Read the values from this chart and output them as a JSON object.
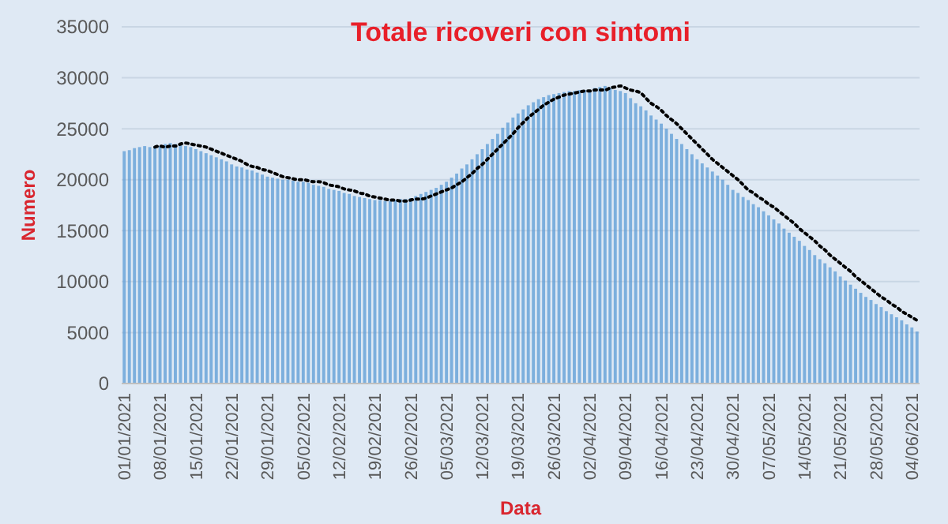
{
  "chart_data": {
    "type": "bar",
    "title": "Totale ricoveri con sintomi",
    "xlabel": "Data",
    "ylabel": "Numero",
    "categories": [
      "01/01/2021",
      null,
      null,
      null,
      null,
      null,
      null,
      "08/01/2021",
      null,
      null,
      null,
      null,
      null,
      null,
      "15/01/2021",
      null,
      null,
      null,
      null,
      null,
      null,
      "22/01/2021",
      null,
      null,
      null,
      null,
      null,
      null,
      "29/01/2021",
      null,
      null,
      null,
      null,
      null,
      null,
      "05/02/2021",
      null,
      null,
      null,
      null,
      null,
      null,
      "12/02/2021",
      null,
      null,
      null,
      null,
      null,
      null,
      "19/02/2021",
      null,
      null,
      null,
      null,
      null,
      null,
      "26/02/2021",
      null,
      null,
      null,
      null,
      null,
      null,
      "05/03/2021",
      null,
      null,
      null,
      null,
      null,
      null,
      "12/03/2021",
      null,
      null,
      null,
      null,
      null,
      null,
      "19/03/2021",
      null,
      null,
      null,
      null,
      null,
      null,
      "26/03/2021",
      null,
      null,
      null,
      null,
      null,
      null,
      "02/04/2021",
      null,
      null,
      null,
      null,
      null,
      null,
      "09/04/2021",
      null,
      null,
      null,
      null,
      null,
      null,
      "16/04/2021",
      null,
      null,
      null,
      null,
      null,
      null,
      "23/04/2021",
      null,
      null,
      null,
      null,
      null,
      null,
      "30/04/2021",
      null,
      null,
      null,
      null,
      null,
      null,
      "07/05/2021",
      null,
      null,
      null,
      null,
      null,
      null,
      "14/05/2021",
      null,
      null,
      null,
      null,
      null,
      null,
      "21/05/2021",
      null,
      null,
      null,
      null,
      null,
      null,
      "28/05/2021",
      null,
      null,
      null,
      null,
      null,
      null,
      "04/06/2021",
      null
    ],
    "series": [
      {
        "color": "#5b9bd5",
        "values": [
          22800,
          22900,
          23100,
          23200,
          23300,
          23200,
          23300,
          23300,
          23500,
          23600,
          23500,
          23400,
          23300,
          23200,
          23000,
          22800,
          22600,
          22400,
          22200,
          22000,
          21800,
          21500,
          21300,
          21200,
          21000,
          20900,
          20700,
          20500,
          20300,
          20200,
          20100,
          20000,
          20000,
          19900,
          19800,
          19800,
          19700,
          19500,
          19400,
          19300,
          19100,
          19000,
          18900,
          18700,
          18600,
          18400,
          18300,
          18200,
          18100,
          18000,
          18000,
          17900,
          17900,
          18000,
          18100,
          18100,
          18200,
          18400,
          18600,
          18800,
          19000,
          19200,
          19500,
          19800,
          20200,
          20600,
          21100,
          21500,
          22000,
          22500,
          23000,
          23500,
          24000,
          24500,
          25100,
          25600,
          26100,
          26500,
          26900,
          27300,
          27600,
          27900,
          28100,
          28300,
          28400,
          28500,
          28600,
          28700,
          28700,
          28800,
          28800,
          28800,
          29000,
          29100,
          29200,
          29000,
          28800,
          28700,
          28500,
          28000,
          27500,
          27200,
          26800,
          26300,
          25900,
          25500,
          25000,
          24500,
          24000,
          23500,
          23000,
          22500,
          22000,
          21600,
          21200,
          20800,
          20400,
          20000,
          19500,
          19000,
          18700,
          18300,
          18000,
          17600,
          17300,
          16900,
          16500,
          16100,
          15700,
          15200,
          14800,
          14400,
          14000,
          13500,
          13100,
          12600,
          12200,
          11800,
          11400,
          11000,
          10500,
          10100,
          9700,
          9300,
          8900,
          8500,
          8200,
          7800,
          7500,
          7100,
          6800,
          6500,
          6200,
          5800,
          5500,
          5100
        ]
      },
      {
        "type": "line",
        "color": "#000000",
        "line_style": "dotted",
        "values": [
          null,
          null,
          null,
          null,
          null,
          null,
          23200,
          23300,
          23200,
          23300,
          23300,
          23500,
          23600,
          23500,
          23400,
          23300,
          23200,
          23000,
          22800,
          22600,
          22400,
          22200,
          22000,
          21800,
          21500,
          21300,
          21200,
          21000,
          20900,
          20700,
          20500,
          20300,
          20200,
          20100,
          20000,
          20000,
          19900,
          19800,
          19800,
          19700,
          19500,
          19400,
          19300,
          19100,
          19000,
          18900,
          18700,
          18600,
          18400,
          18300,
          18200,
          18100,
          18000,
          18000,
          17900,
          17900,
          18000,
          18100,
          18100,
          18200,
          18400,
          18600,
          18800,
          19000,
          19200,
          19500,
          19800,
          20200,
          20600,
          21100,
          21500,
          22000,
          22500,
          23000,
          23500,
          24000,
          24500,
          25100,
          25600,
          26100,
          26500,
          26900,
          27300,
          27600,
          27900,
          28100,
          28300,
          28400,
          28500,
          28600,
          28700,
          28700,
          28800,
          28800,
          28800,
          29000,
          29100,
          29200,
          29000,
          28800,
          28700,
          28500,
          28000,
          27500,
          27200,
          26800,
          26300,
          25900,
          25500,
          25000,
          24500,
          24000,
          23500,
          23000,
          22500,
          22000,
          21600,
          21200,
          20800,
          20400,
          20000,
          19500,
          19000,
          18700,
          18300,
          18000,
          17600,
          17300,
          16900,
          16500,
          16100,
          15700,
          15200,
          14800,
          14400,
          14000,
          13500,
          13100,
          12600,
          12200,
          11800,
          11400,
          11000,
          10500,
          10100,
          9700,
          9300,
          8900,
          8500,
          8200,
          7800,
          7500,
          7100,
          6800,
          6500,
          6200
        ]
      }
    ],
    "ylim": [
      0,
      35000
    ],
    "yticks": [
      0,
      5000,
      10000,
      15000,
      20000,
      25000,
      30000,
      35000
    ],
    "grid": "y"
  }
}
